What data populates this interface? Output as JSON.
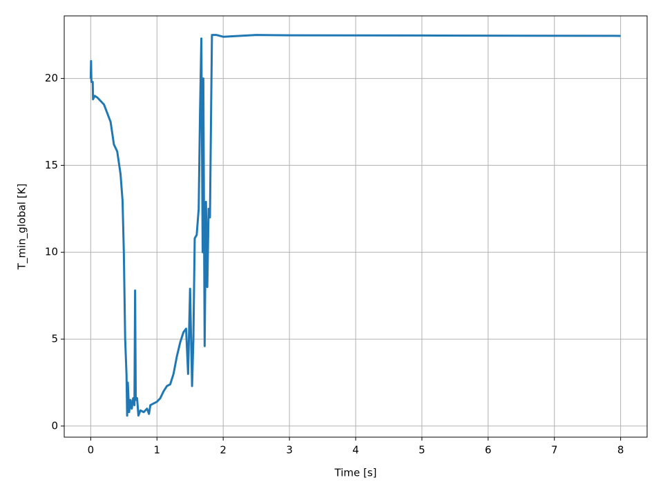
{
  "chart_data": {
    "type": "line",
    "x_label": "Time [s]",
    "y_label": "T_min_global [K]",
    "x": [
      0,
      0.005,
      0.01,
      0.03,
      0.035,
      0.06,
      0.1,
      0.2,
      0.3,
      0.35,
      0.4,
      0.45,
      0.48,
      0.5,
      0.52,
      0.54,
      0.55,
      0.56,
      0.58,
      0.6,
      0.62,
      0.64,
      0.66,
      0.67,
      0.68,
      0.7,
      0.72,
      0.75,
      0.8,
      0.85,
      0.88,
      0.9,
      1.0,
      1.05,
      1.1,
      1.15,
      1.2,
      1.25,
      1.3,
      1.35,
      1.4,
      1.44,
      1.47,
      1.5,
      1.53,
      1.55,
      1.57,
      1.6,
      1.63,
      1.65,
      1.67,
      1.69,
      1.7,
      1.72,
      1.74,
      1.76,
      1.78,
      1.8,
      1.83,
      1.9,
      2.0,
      2.5,
      3,
      5,
      8
    ],
    "series": [
      {
        "name": "T_min_global",
        "color": "#1f77b4",
        "values": [
          20.0,
          21.0,
          19.8,
          19.8,
          18.8,
          19.0,
          18.9,
          18.5,
          17.5,
          16.2,
          15.8,
          14.5,
          13.0,
          10.0,
          5.0,
          3.0,
          0.6,
          2.5,
          0.8,
          1.5,
          1.0,
          1.6,
          1.2,
          7.8,
          1.5,
          1.6,
          0.6,
          0.9,
          0.8,
          1.0,
          0.7,
          1.2,
          1.4,
          1.6,
          2.0,
          2.3,
          2.4,
          3.0,
          4.0,
          4.8,
          5.4,
          5.6,
          3.0,
          7.9,
          2.3,
          5.0,
          10.8,
          11.0,
          12.5,
          18.0,
          22.3,
          10.0,
          20.0,
          4.6,
          12.9,
          8.0,
          12.5,
          12.0,
          22.5,
          22.5,
          22.4,
          22.5,
          22.48,
          22.47,
          22.45
        ]
      }
    ],
    "xlim": [
      -0.4,
      8.4
    ],
    "ylim": [
      -0.64,
      23.6
    ],
    "xticks": [
      0,
      1,
      2,
      3,
      4,
      5,
      6,
      7,
      8
    ],
    "yticks": [
      0,
      5,
      10,
      15,
      20
    ],
    "grid": true
  }
}
